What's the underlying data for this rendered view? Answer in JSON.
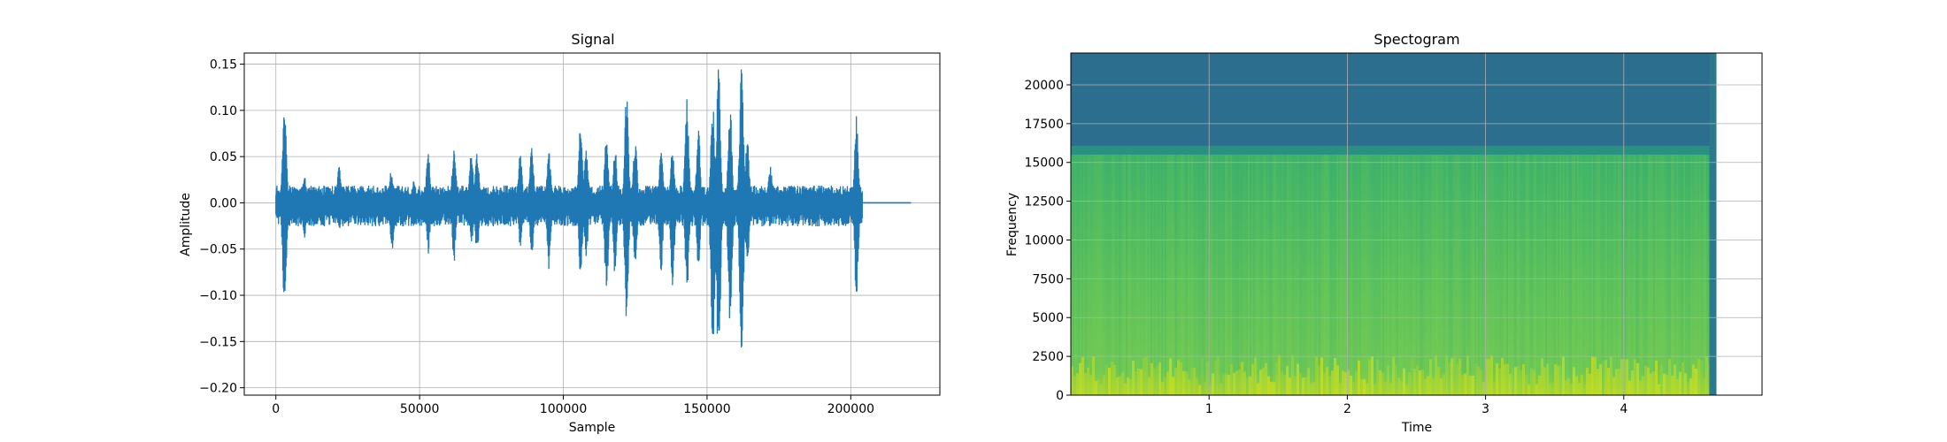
{
  "chart_data": [
    {
      "type": "line",
      "title": "Signal",
      "xlabel": "Sample",
      "ylabel": "Amplitude",
      "xlim": [
        -11000,
        231000
      ],
      "ylim": [
        -0.208,
        0.162
      ],
      "grid": true,
      "xticks": [
        0,
        50000,
        100000,
        150000,
        200000
      ],
      "xtick_labels": [
        "0",
        "50000",
        "100000",
        "150000",
        "200000"
      ],
      "yticks": [
        -0.2,
        -0.15,
        -0.1,
        -0.05,
        0.0,
        0.05,
        0.1,
        0.15
      ],
      "ytick_labels": [
        "−0.20",
        "−0.15",
        "−0.10",
        "−0.05",
        "0.00",
        "0.05",
        "0.10",
        "0.15"
      ],
      "series_color": "#1f77b4",
      "signal_end": 204000,
      "total_samples": 221000,
      "base_noise_level": 0.015,
      "bursts": [
        {
          "x": 3000,
          "pos": 0.11,
          "neg": -0.125
        },
        {
          "x": 10000,
          "pos": 0.03,
          "neg": -0.04
        },
        {
          "x": 22000,
          "pos": 0.04,
          "neg": -0.03
        },
        {
          "x": 40000,
          "pos": 0.035,
          "neg": -0.035
        },
        {
          "x": 40500,
          "pos": 0.03,
          "neg": -0.055
        },
        {
          "x": 48000,
          "pos": 0.025,
          "neg": -0.03
        },
        {
          "x": 53000,
          "pos": 0.055,
          "neg": -0.055
        },
        {
          "x": 62000,
          "pos": 0.065,
          "neg": -0.065
        },
        {
          "x": 68000,
          "pos": 0.055,
          "neg": -0.045
        },
        {
          "x": 70000,
          "pos": 0.06,
          "neg": -0.06
        },
        {
          "x": 85000,
          "pos": 0.055,
          "neg": -0.05
        },
        {
          "x": 89000,
          "pos": 0.06,
          "neg": -0.06
        },
        {
          "x": 95000,
          "pos": 0.055,
          "neg": -0.075
        },
        {
          "x": 106000,
          "pos": 0.09,
          "neg": -0.085
        },
        {
          "x": 108000,
          "pos": 0.06,
          "neg": -0.06
        },
        {
          "x": 115000,
          "pos": 0.075,
          "neg": -0.1
        },
        {
          "x": 118000,
          "pos": 0.06,
          "neg": -0.08
        },
        {
          "x": 122000,
          "pos": 0.12,
          "neg": -0.135
        },
        {
          "x": 125000,
          "pos": 0.07,
          "neg": -0.07
        },
        {
          "x": 134000,
          "pos": 0.06,
          "neg": -0.075
        },
        {
          "x": 138000,
          "pos": 0.06,
          "neg": -0.09
        },
        {
          "x": 143000,
          "pos": 0.115,
          "neg": -0.1
        },
        {
          "x": 147000,
          "pos": 0.08,
          "neg": -0.07
        },
        {
          "x": 152000,
          "pos": 0.11,
          "neg": -0.175
        },
        {
          "x": 154000,
          "pos": 0.148,
          "neg": -0.188
        },
        {
          "x": 158000,
          "pos": 0.11,
          "neg": -0.14
        },
        {
          "x": 162000,
          "pos": 0.148,
          "neg": -0.188
        },
        {
          "x": 164000,
          "pos": 0.07,
          "neg": -0.07
        },
        {
          "x": 172000,
          "pos": 0.04,
          "neg": -0.03
        },
        {
          "x": 202000,
          "pos": 0.095,
          "neg": -0.105
        }
      ]
    },
    {
      "type": "heatmap",
      "title": "Spectogram",
      "xlabel": "Time",
      "ylabel": "Frequency",
      "xlim": [
        0.0,
        5.0
      ],
      "ylim": [
        0,
        22050
      ],
      "data_time_end": 4.67,
      "grid": true,
      "xticks": [
        1,
        2,
        3,
        4
      ],
      "xtick_labels": [
        "1",
        "2",
        "3",
        "4"
      ],
      "yticks": [
        0,
        2500,
        5000,
        7500,
        10000,
        12500,
        15000,
        17500,
        20000
      ],
      "ytick_labels": [
        "0",
        "2500",
        "5000",
        "7500",
        "10000",
        "12500",
        "15000",
        "17500",
        "20000"
      ],
      "colormap": "viridis",
      "cutoff_frequency": 15500,
      "colors": {
        "above_cutoff": "#2c6e8e",
        "upper_band": "#3fb36a",
        "mid_band": "#5ec25c",
        "low_band": "#6fc955",
        "bright": "#d5e21a",
        "edge_strip": "#2a7a8b"
      }
    }
  ]
}
